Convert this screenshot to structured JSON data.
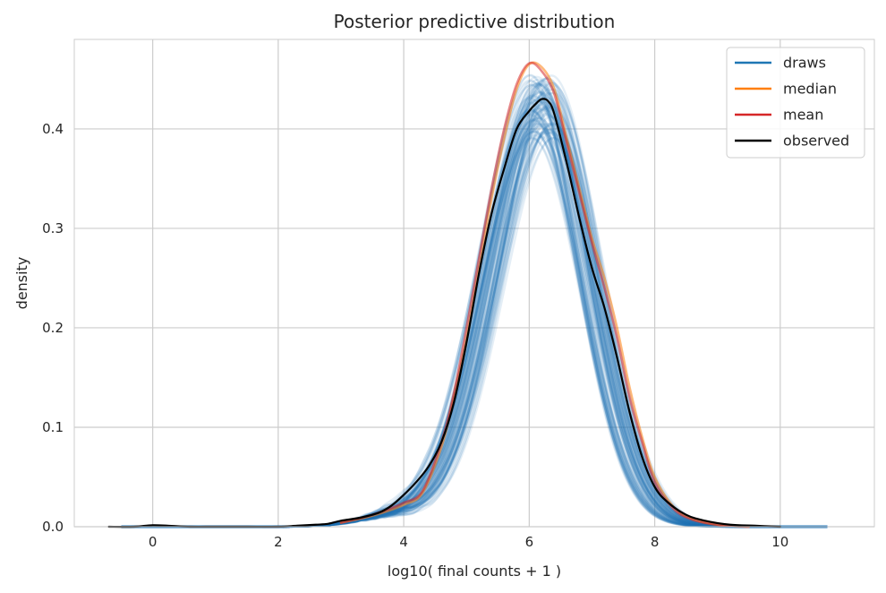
{
  "chart_data": {
    "type": "line",
    "title": "Posterior predictive distribution",
    "xlabel": "log10( final counts + 1 )",
    "ylabel": "density",
    "xlim": [
      -1.25,
      11.5
    ],
    "ylim": [
      0,
      0.49
    ],
    "xticks": [
      0,
      2,
      4,
      6,
      8,
      10
    ],
    "yticks": [
      0.0,
      0.1,
      0.2,
      0.3,
      0.4
    ],
    "ytick_labels": [
      "0.0",
      "0.1",
      "0.2",
      "0.3",
      "0.4"
    ],
    "grid": true,
    "legend_position": "top-right",
    "legend": [
      {
        "label": "draws",
        "color": "#1f77b4"
      },
      {
        "label": "median",
        "color": "#ff7f0e"
      },
      {
        "label": "mean",
        "color": "#d62728"
      },
      {
        "label": "observed",
        "color": "#000000"
      }
    ],
    "draws": {
      "color": "#1f77b4",
      "count": 100,
      "x_range": [
        -0.5,
        10.9
      ],
      "peak_x_range": [
        6.0,
        6.4
      ],
      "peak_y_range": [
        0.39,
        0.455
      ]
    },
    "series": [
      {
        "name": "median",
        "color": "#ff7f0e",
        "x": [
          3.0,
          3.5,
          4.0,
          4.3,
          4.6,
          4.8,
          5.0,
          5.2,
          5.4,
          5.6,
          5.8,
          6.0,
          6.2,
          6.4,
          6.6,
          6.8,
          7.0,
          7.2,
          7.4,
          7.6,
          7.8,
          8.0,
          8.3,
          8.6,
          9.0,
          9.5
        ],
        "y": [
          0.004,
          0.011,
          0.022,
          0.034,
          0.08,
          0.13,
          0.19,
          0.26,
          0.33,
          0.39,
          0.44,
          0.465,
          0.462,
          0.44,
          0.39,
          0.34,
          0.29,
          0.25,
          0.2,
          0.14,
          0.09,
          0.05,
          0.02,
          0.008,
          0.002,
          0.0
        ]
      },
      {
        "name": "mean",
        "color": "#d62728",
        "x": [
          3.0,
          3.5,
          4.0,
          4.3,
          4.6,
          4.8,
          5.0,
          5.2,
          5.4,
          5.6,
          5.8,
          6.0,
          6.2,
          6.4,
          6.6,
          6.8,
          7.0,
          7.2,
          7.4,
          7.6,
          7.8,
          8.0,
          8.3,
          8.6,
          9.0,
          9.5
        ],
        "y": [
          0.004,
          0.012,
          0.024,
          0.036,
          0.085,
          0.135,
          0.2,
          0.27,
          0.34,
          0.4,
          0.445,
          0.466,
          0.458,
          0.435,
          0.385,
          0.335,
          0.285,
          0.24,
          0.19,
          0.13,
          0.085,
          0.045,
          0.018,
          0.007,
          0.002,
          0.0
        ]
      },
      {
        "name": "observed",
        "color": "#000000",
        "x": [
          -0.7,
          -0.3,
          0.0,
          0.3,
          0.6,
          1.0,
          1.5,
          2.0,
          2.3,
          2.6,
          2.8,
          3.0,
          3.3,
          3.6,
          3.8,
          4.0,
          4.2,
          4.4,
          4.6,
          4.8,
          5.0,
          5.2,
          5.4,
          5.6,
          5.8,
          6.0,
          6.1,
          6.2,
          6.3,
          6.4,
          6.6,
          6.8,
          7.0,
          7.2,
          7.4,
          7.6,
          7.8,
          8.0,
          8.2,
          8.5,
          8.8,
          9.2,
          9.6,
          10.0
        ],
        "y": [
          0.0,
          0.0,
          0.0015,
          0.0008,
          0.0,
          0.0,
          0.0,
          0.0,
          0.001,
          0.002,
          0.003,
          0.006,
          0.009,
          0.014,
          0.021,
          0.032,
          0.045,
          0.061,
          0.085,
          0.125,
          0.185,
          0.255,
          0.315,
          0.36,
          0.4,
          0.418,
          0.425,
          0.43,
          0.428,
          0.415,
          0.365,
          0.31,
          0.26,
          0.22,
          0.17,
          0.115,
          0.07,
          0.04,
          0.025,
          0.012,
          0.006,
          0.002,
          0.001,
          0.0
        ]
      }
    ]
  }
}
